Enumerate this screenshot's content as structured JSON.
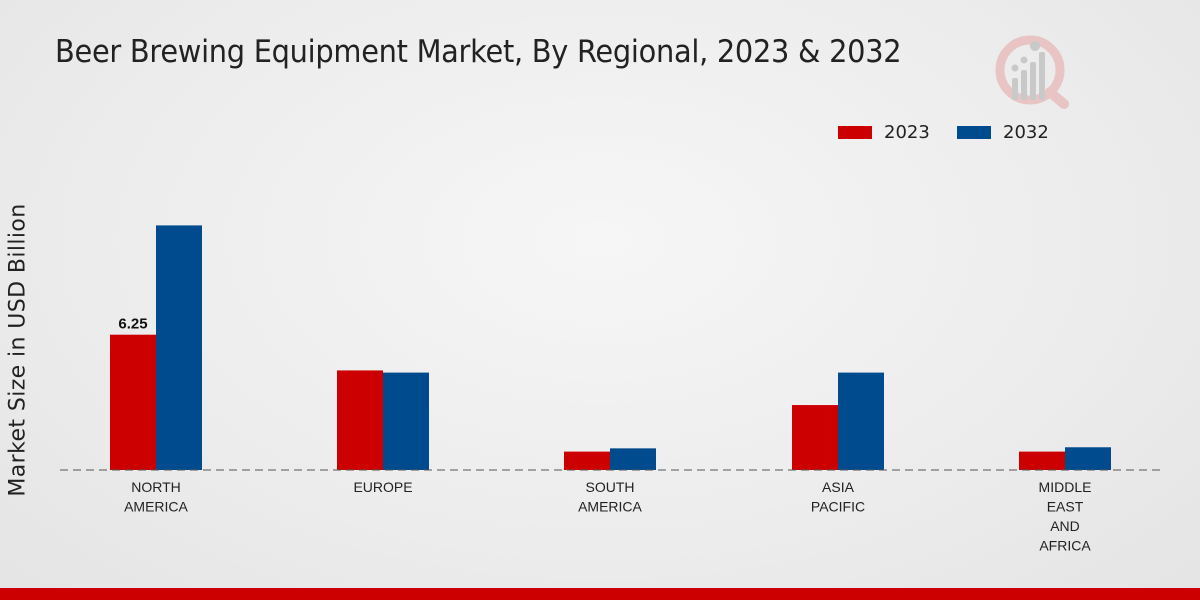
{
  "chart_data": {
    "type": "bar",
    "title": "Beer Brewing Equipment Market, By Regional, 2023 & 2032",
    "xlabel": "",
    "ylabel": "Market Size in USD Billion",
    "categories": [
      [
        "NORTH",
        "AMERICA"
      ],
      [
        "EUROPE"
      ],
      [
        "SOUTH",
        "AMERICA"
      ],
      [
        "ASIA",
        "PACIFIC"
      ],
      [
        "MIDDLE",
        "EAST",
        "AND",
        "AFRICA"
      ]
    ],
    "series": [
      {
        "name": "2023",
        "color": "#cc0000",
        "values": [
          6.25,
          4.6,
          0.85,
          3.0,
          0.85
        ]
      },
      {
        "name": "2032",
        "color": "#004b8d",
        "values": [
          11.3,
          4.5,
          1.0,
          4.5,
          1.05
        ]
      }
    ],
    "data_labels": [
      {
        "series": 0,
        "index": 0,
        "text": "6.25"
      }
    ],
    "ylim": [
      0,
      17
    ],
    "grid": false,
    "legend": "top-right",
    "baseline": "dashed"
  }
}
